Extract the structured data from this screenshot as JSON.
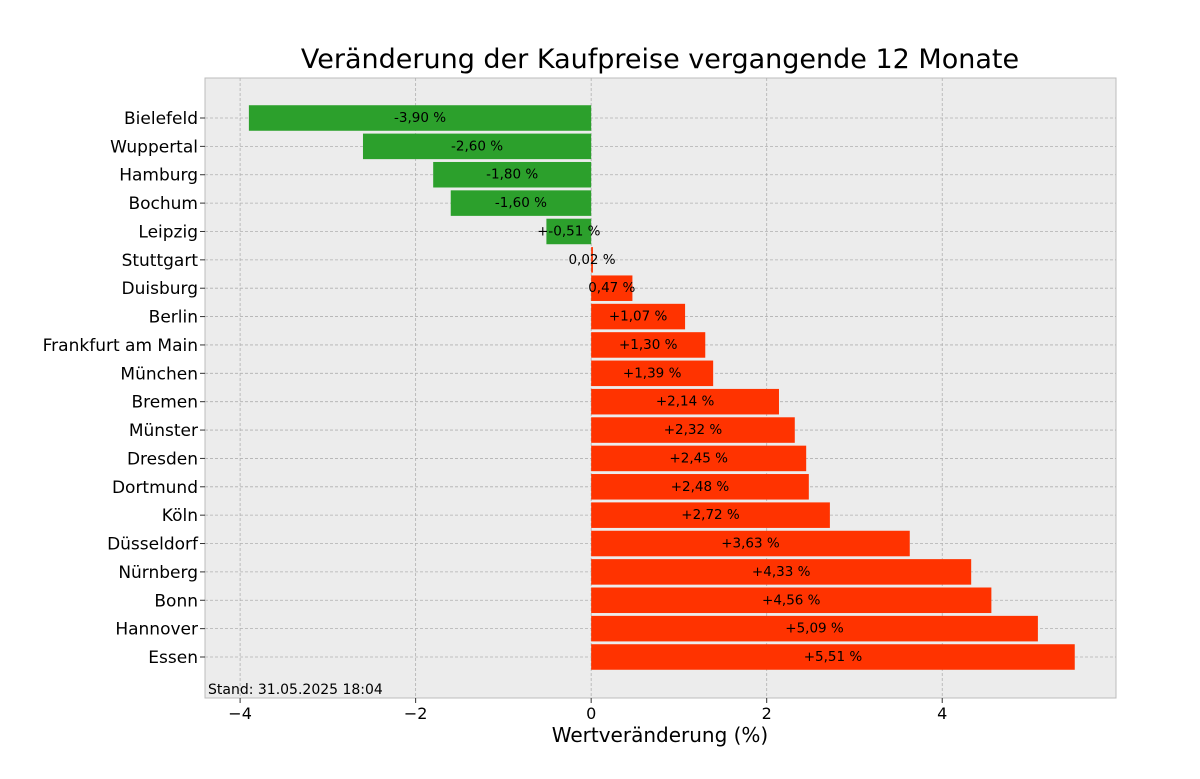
{
  "chart_data": {
    "type": "bar",
    "orientation": "horizontal",
    "title": "Veränderung der Kaufpreise vergangende 12 Monate",
    "xlabel": "Wertveränderung (%)",
    "ylabel": "",
    "xlim": [
      -4.4,
      5.98
    ],
    "xticks": [
      -4,
      -2,
      0,
      2,
      4
    ],
    "xtick_labels": [
      "−4",
      "−2",
      "0",
      "2",
      "4"
    ],
    "grid": true,
    "colors": {
      "negative": "#2ca02c",
      "positive": "#ff3300",
      "background": "#ececec",
      "grid": "#b0b0b0"
    },
    "categories": [
      "Bielefeld",
      "Wuppertal",
      "Hamburg",
      "Bochum",
      "Leipzig",
      "Stuttgart",
      "Duisburg",
      "Berlin",
      "Frankfurt am Main",
      "München",
      "Bremen",
      "Münster",
      "Dresden",
      "Dortmund",
      "Köln",
      "Düsseldorf",
      "Nürnberg",
      "Bonn",
      "Hannover",
      "Essen"
    ],
    "values": [
      -3.9,
      -2.6,
      -1.8,
      -1.6,
      -0.51,
      0.02,
      0.47,
      1.07,
      1.3,
      1.39,
      2.14,
      2.32,
      2.45,
      2.48,
      2.72,
      3.63,
      4.33,
      4.56,
      5.09,
      5.51
    ],
    "data_labels": [
      "-3,90 %",
      "-2,60 %",
      "-1,80 %",
      "-1,60 %",
      "+-0,51 %",
      "0,02 %",
      "0,47 %",
      "+1,07 %",
      "+1,30 %",
      "+1,39 %",
      "+2,14 %",
      "+2,32 %",
      "+2,45 %",
      "+2,48 %",
      "+2,72 %",
      "+3,63 %",
      "+4,33 %",
      "+4,56 %",
      "+5,09 %",
      "+5,51 %"
    ],
    "annotation": "Stand: 31.05.2025 18:04"
  }
}
